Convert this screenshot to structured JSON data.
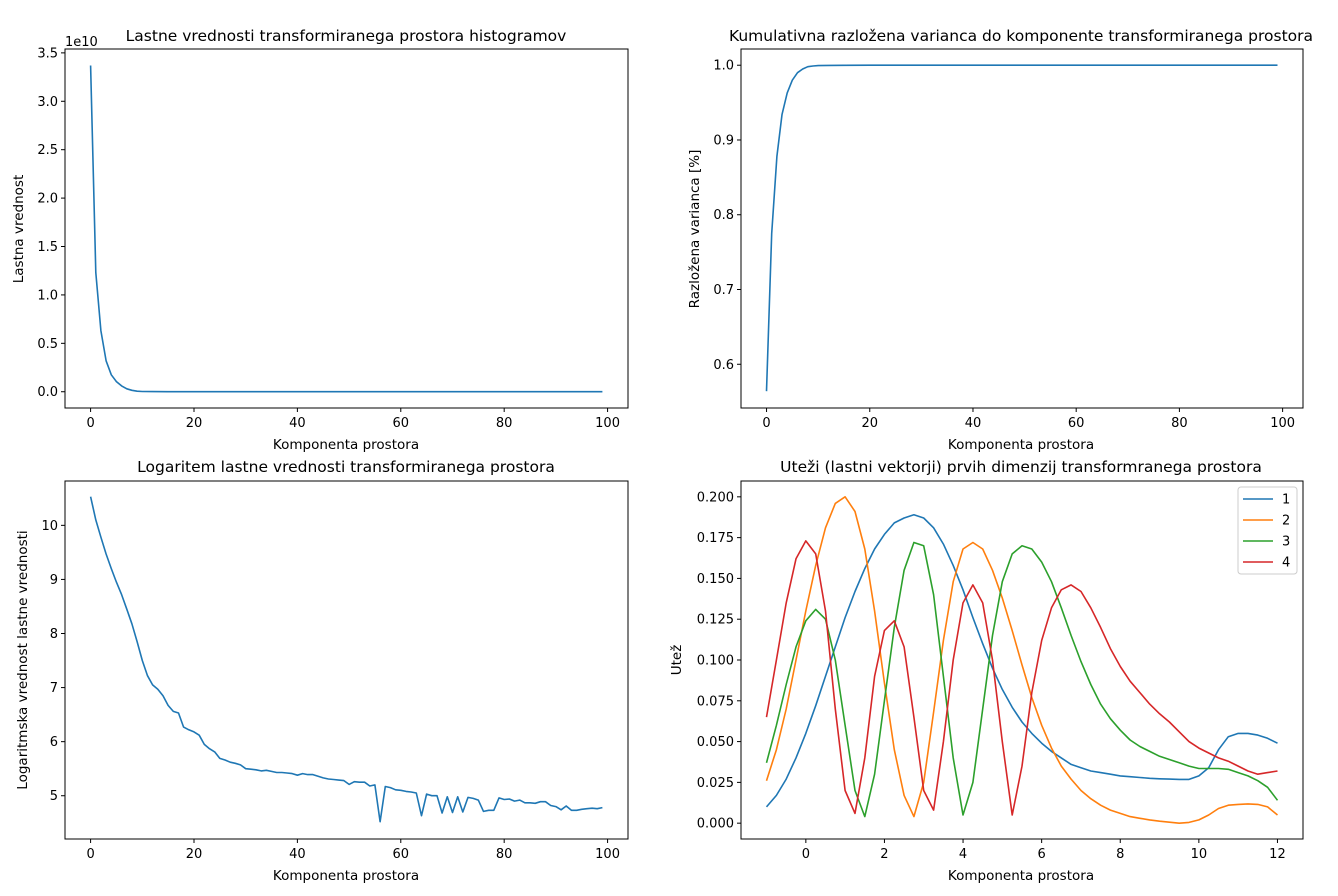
{
  "chart_data": [
    {
      "id": "eigen",
      "type": "line",
      "title": "Lastne vrednosti transformiranega prostora histogramov",
      "xlabel": "Komponenta prostora",
      "ylabel": "Lastna vrednost",
      "offset_text": "1e10",
      "xlim": [
        -4.95,
        103.95
      ],
      "ylim": [
        -1.68,
        35.4
      ],
      "xticks": [
        0,
        20,
        40,
        60,
        80,
        100
      ],
      "xtick_labels": [
        "0",
        "20",
        "40",
        "60",
        "80",
        "100"
      ],
      "yticks": [
        0,
        5,
        10,
        15,
        20,
        25,
        30,
        35
      ],
      "ytick_labels": [
        "0.0",
        "0.5",
        "1.0",
        "1.5",
        "2.0",
        "2.5",
        "3.0",
        "3.5"
      ],
      "series": [
        {
          "color": "#1f77b4",
          "x": [
            0,
            1,
            2,
            3,
            4,
            5,
            6,
            7,
            8,
            9,
            10,
            12,
            15,
            20,
            30,
            50,
            70,
            99
          ],
          "y": [
            33.7,
            12.3,
            6.3,
            3.2,
            1.75,
            1.05,
            0.6,
            0.3,
            0.15,
            0.06,
            0.02,
            0.01,
            0.005,
            0.004,
            0.002,
            0.002,
            0.001,
            0.001
          ]
        }
      ]
    },
    {
      "id": "cumvar",
      "type": "line",
      "title": "Kumulativna razložena varianca do komponente transformiranega prostora",
      "xlabel": "Komponenta prostora",
      "ylabel": "Razložena varianca [%]",
      "xlim": [
        -4.95,
        103.95
      ],
      "ylim": [
        0.5415,
        1.0217
      ],
      "xticks": [
        0,
        20,
        40,
        60,
        80,
        100
      ],
      "xtick_labels": [
        "0",
        "20",
        "40",
        "60",
        "80",
        "100"
      ],
      "yticks": [
        0.6,
        0.7,
        0.8,
        0.9,
        1.0
      ],
      "ytick_labels": [
        "0.6",
        "0.7",
        "0.8",
        "0.9",
        "1.0"
      ],
      "series": [
        {
          "color": "#1f77b4",
          "x": [
            0,
            1,
            2,
            3,
            4,
            5,
            6,
            7,
            8,
            9,
            10,
            12,
            15,
            20,
            30,
            50,
            99
          ],
          "y": [
            0.564,
            0.775,
            0.878,
            0.934,
            0.963,
            0.98,
            0.99,
            0.995,
            0.998,
            0.999,
            0.9995,
            0.9998,
            0.9999,
            1.0,
            1.0,
            1.0,
            1.0
          ]
        }
      ]
    },
    {
      "id": "logeigen",
      "type": "line",
      "title": "Logaritem lastne vrednosti transformiranega prostora",
      "xlabel": "Komponenta prostora",
      "ylabel": "Logaritmska vrednost lastne vrednosti",
      "xlim": [
        -4.95,
        103.95
      ],
      "ylim": [
        4.2,
        10.82
      ],
      "xticks": [
        0,
        20,
        40,
        60,
        80,
        100
      ],
      "xtick_labels": [
        "0",
        "20",
        "40",
        "60",
        "80",
        "100"
      ],
      "yticks": [
        5,
        6,
        7,
        8,
        9,
        10
      ],
      "ytick_labels": [
        "5",
        "6",
        "7",
        "8",
        "9",
        "10"
      ],
      "series": [
        {
          "color": "#1f77b4",
          "x": [
            0,
            1,
            2,
            3,
            4,
            5,
            6,
            7,
            8,
            9,
            10,
            11,
            12,
            13,
            14,
            15,
            16,
            17,
            18,
            19,
            20,
            21,
            22,
            23,
            24,
            25,
            26,
            27,
            28,
            29,
            30,
            31,
            32,
            33,
            34,
            35,
            36,
            37,
            38,
            39,
            40,
            41,
            42,
            43,
            44,
            45,
            46,
            47,
            48,
            49,
            50,
            51,
            52,
            53,
            54,
            55,
            56,
            57,
            58,
            59,
            60,
            61,
            62,
            63,
            64,
            65,
            66,
            67,
            68,
            69,
            70,
            71,
            72,
            73,
            74,
            75,
            76,
            77,
            78,
            79,
            80,
            81,
            82,
            83,
            84,
            85,
            86,
            87,
            88,
            89,
            90,
            91,
            92,
            93,
            94,
            95,
            96,
            97,
            98,
            99
          ],
          "y": [
            10.53,
            10.1,
            9.78,
            9.47,
            9.2,
            8.95,
            8.72,
            8.45,
            8.18,
            7.85,
            7.5,
            7.22,
            7.05,
            6.97,
            6.85,
            6.67,
            6.56,
            6.53,
            6.27,
            6.22,
            6.18,
            6.12,
            5.95,
            5.87,
            5.81,
            5.69,
            5.66,
            5.62,
            5.6,
            5.57,
            5.5,
            5.49,
            5.48,
            5.46,
            5.47,
            5.45,
            5.43,
            5.43,
            5.42,
            5.41,
            5.38,
            5.41,
            5.39,
            5.39,
            5.36,
            5.33,
            5.31,
            5.3,
            5.29,
            5.28,
            5.21,
            5.26,
            5.25,
            5.25,
            5.18,
            5.2,
            4.52,
            5.17,
            5.15,
            5.11,
            5.1,
            5.08,
            5.07,
            5.05,
            4.63,
            5.03,
            5.0,
            5.0,
            4.68,
            4.98,
            4.69,
            4.98,
            4.7,
            4.97,
            4.95,
            4.92,
            4.71,
            4.73,
            4.73,
            4.96,
            4.93,
            4.94,
            4.9,
            4.92,
            4.87,
            4.87,
            4.86,
            4.89,
            4.89,
            4.82,
            4.8,
            4.74,
            4.81,
            4.73,
            4.73,
            4.75,
            4.76,
            4.77,
            4.76,
            4.78
          ]
        }
      ]
    },
    {
      "id": "weights",
      "type": "line",
      "title": "Uteži (lastni vektorji) prvih dimenzij transformranega prostora",
      "xlabel": "Komponenta prostora",
      "ylabel": "Utež",
      "xlim": [
        -1.65,
        12.65
      ],
      "ylim": [
        -0.0097,
        0.2097
      ],
      "xticks": [
        0,
        2,
        4,
        6,
        8,
        10,
        12
      ],
      "xtick_labels": [
        "0",
        "2",
        "4",
        "6",
        "8",
        "10",
        "12"
      ],
      "yticks": [
        0.0,
        0.025,
        0.05,
        0.075,
        0.1,
        0.125,
        0.15,
        0.175,
        0.2
      ],
      "ytick_labels": [
        "0.000",
        "0.025",
        "0.050",
        "0.075",
        "0.100",
        "0.125",
        "0.150",
        "0.175",
        "0.200"
      ],
      "legend": {
        "placement": "upper right",
        "labels": [
          "1",
          "2",
          "3",
          "4"
        ]
      },
      "series": [
        {
          "name": "1",
          "color": "#1f77b4",
          "x": [
            -1.0,
            -0.75,
            -0.5,
            -0.25,
            0.0,
            0.25,
            0.5,
            0.75,
            1.0,
            1.25,
            1.5,
            1.75,
            2.0,
            2.25,
            2.5,
            2.75,
            3.0,
            3.25,
            3.5,
            3.75,
            4.0,
            4.25,
            4.5,
            4.75,
            5.0,
            5.25,
            5.5,
            5.75,
            6.0,
            6.25,
            6.5,
            6.75,
            7.0,
            7.25,
            7.5,
            7.75,
            8.0,
            8.25,
            8.5,
            8.75,
            9.0,
            9.25,
            9.5,
            9.75,
            10.0,
            10.25,
            10.5,
            10.75,
            11.0,
            11.25,
            11.5,
            11.75,
            12.0
          ],
          "y": [
            0.01,
            0.017,
            0.027,
            0.04,
            0.055,
            0.072,
            0.09,
            0.108,
            0.126,
            0.142,
            0.156,
            0.168,
            0.177,
            0.184,
            0.187,
            0.189,
            0.187,
            0.181,
            0.171,
            0.158,
            0.143,
            0.126,
            0.11,
            0.095,
            0.082,
            0.071,
            0.062,
            0.055,
            0.049,
            0.044,
            0.04,
            0.036,
            0.034,
            0.032,
            0.031,
            0.03,
            0.029,
            0.0285,
            0.028,
            0.0275,
            0.0272,
            0.027,
            0.0268,
            0.0268,
            0.029,
            0.034,
            0.045,
            0.053,
            0.055,
            0.055,
            0.054,
            0.052,
            0.049
          ]
        },
        {
          "name": "2",
          "color": "#ff7f0e",
          "x": [
            -1.0,
            -0.75,
            -0.5,
            -0.25,
            0.0,
            0.25,
            0.5,
            0.75,
            1.0,
            1.25,
            1.5,
            1.75,
            2.0,
            2.25,
            2.5,
            2.75,
            3.0,
            3.25,
            3.5,
            3.75,
            4.0,
            4.25,
            4.5,
            4.75,
            5.0,
            5.25,
            5.5,
            5.75,
            6.0,
            6.25,
            6.5,
            6.75,
            7.0,
            7.25,
            7.5,
            7.75,
            8.0,
            8.25,
            8.5,
            8.75,
            9.0,
            9.25,
            9.5,
            9.75,
            10.0,
            10.25,
            10.5,
            10.75,
            11.0,
            11.25,
            11.5,
            11.75,
            12.0
          ],
          "y": [
            0.026,
            0.045,
            0.07,
            0.1,
            0.13,
            0.158,
            0.181,
            0.196,
            0.2,
            0.191,
            0.168,
            0.13,
            0.086,
            0.045,
            0.017,
            0.004,
            0.025,
            0.068,
            0.112,
            0.148,
            0.168,
            0.172,
            0.168,
            0.155,
            0.138,
            0.118,
            0.097,
            0.077,
            0.06,
            0.046,
            0.035,
            0.027,
            0.02,
            0.015,
            0.011,
            0.008,
            0.006,
            0.004,
            0.003,
            0.002,
            0.0012,
            0.0006,
            0.0,
            0.0005,
            0.002,
            0.005,
            0.009,
            0.011,
            0.0115,
            0.0118,
            0.0115,
            0.01,
            0.005
          ]
        },
        {
          "name": "3",
          "color": "#2ca02c",
          "x": [
            -1.0,
            -0.75,
            -0.5,
            -0.25,
            0.0,
            0.25,
            0.5,
            0.75,
            1.0,
            1.25,
            1.5,
            1.75,
            2.0,
            2.25,
            2.5,
            2.75,
            3.0,
            3.25,
            3.5,
            3.75,
            4.0,
            4.25,
            4.5,
            4.75,
            5.0,
            5.25,
            5.5,
            5.75,
            6.0,
            6.25,
            6.5,
            6.75,
            7.0,
            7.25,
            7.5,
            7.75,
            8.0,
            8.25,
            8.5,
            8.75,
            9.0,
            9.25,
            9.5,
            9.75,
            10.0,
            10.25,
            10.5,
            10.75,
            11.0,
            11.25,
            11.5,
            11.75,
            12.0
          ],
          "y": [
            0.037,
            0.06,
            0.085,
            0.108,
            0.124,
            0.131,
            0.125,
            0.1,
            0.06,
            0.02,
            0.004,
            0.03,
            0.075,
            0.12,
            0.155,
            0.172,
            0.17,
            0.14,
            0.09,
            0.04,
            0.005,
            0.025,
            0.07,
            0.115,
            0.148,
            0.165,
            0.17,
            0.168,
            0.16,
            0.148,
            0.132,
            0.115,
            0.099,
            0.085,
            0.073,
            0.064,
            0.057,
            0.051,
            0.047,
            0.044,
            0.041,
            0.039,
            0.037,
            0.035,
            0.0335,
            0.0335,
            0.0335,
            0.033,
            0.031,
            0.029,
            0.026,
            0.022,
            0.014
          ]
        },
        {
          "name": "4",
          "color": "#d62728",
          "x": [
            -1.0,
            -0.75,
            -0.5,
            -0.25,
            0.0,
            0.25,
            0.5,
            0.75,
            1.0,
            1.25,
            1.5,
            1.75,
            2.0,
            2.25,
            2.5,
            2.75,
            3.0,
            3.25,
            3.5,
            3.75,
            4.0,
            4.25,
            4.5,
            4.75,
            5.0,
            5.25,
            5.5,
            5.75,
            6.0,
            6.25,
            6.5,
            6.75,
            7.0,
            7.25,
            7.5,
            7.75,
            8.0,
            8.25,
            8.5,
            8.75,
            9.0,
            9.25,
            9.5,
            9.75,
            10.0,
            10.25,
            10.5,
            10.75,
            11.0,
            11.25,
            11.5,
            11.75,
            12.0
          ],
          "y": [
            0.065,
            0.1,
            0.135,
            0.162,
            0.173,
            0.165,
            0.13,
            0.07,
            0.02,
            0.006,
            0.04,
            0.09,
            0.118,
            0.124,
            0.108,
            0.065,
            0.02,
            0.008,
            0.05,
            0.1,
            0.135,
            0.146,
            0.135,
            0.1,
            0.05,
            0.005,
            0.035,
            0.08,
            0.112,
            0.132,
            0.143,
            0.146,
            0.142,
            0.132,
            0.12,
            0.107,
            0.096,
            0.087,
            0.08,
            0.073,
            0.067,
            0.062,
            0.056,
            0.05,
            0.046,
            0.043,
            0.04,
            0.038,
            0.035,
            0.032,
            0.03,
            0.031,
            0.032
          ]
        }
      ]
    }
  ]
}
